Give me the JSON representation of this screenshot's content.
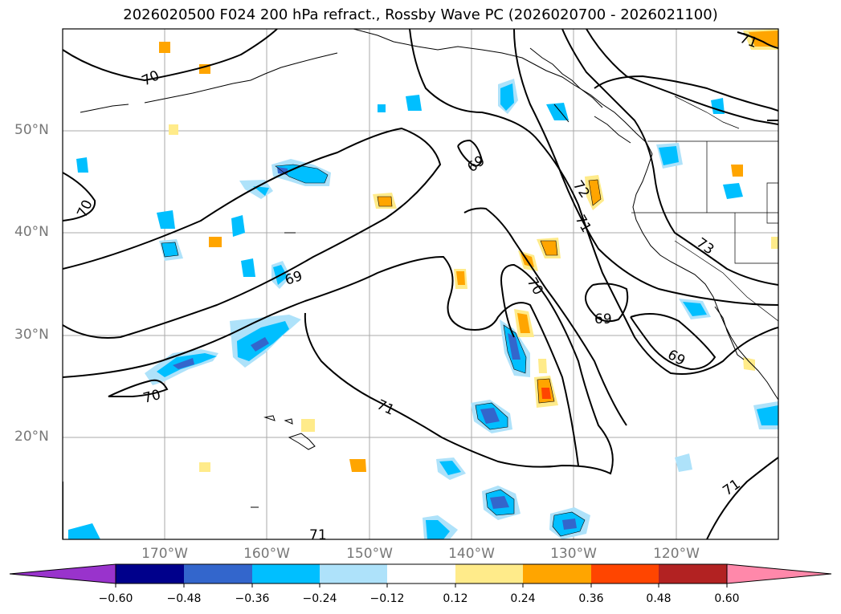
{
  "title": "2026020500 F024 200 hPa refract., Rossby Wave PC (2026020700 - 2026021100)",
  "lat_labels": [
    "50°N",
    "40°N",
    "30°N",
    "20°N"
  ],
  "lon_labels": [
    "170°W",
    "160°W",
    "150°W",
    "140°W",
    "130°W",
    "120°W"
  ],
  "contour_labels": [
    "70",
    "70",
    "69",
    "69",
    "72",
    "71",
    "73",
    "70",
    "69",
    "69",
    "70",
    "71",
    "71",
    "71",
    "71"
  ],
  "colorbar": {
    "ticks": [
      "−0.60",
      "−0.48",
      "−0.36",
      "−0.24",
      "−0.12",
      "0.12",
      "0.24",
      "0.36",
      "0.48",
      "0.60"
    ],
    "colors": [
      "#9933cc",
      "#00008b",
      "#3366cc",
      "#00bfff",
      "#aee2fa",
      "#ffffff",
      "#ffeb8a",
      "#ffa500",
      "#ff4500",
      "#b22222",
      "#ff88aa"
    ]
  },
  "colors": {
    "land_line": "#000000",
    "grid": "#aaaaaa",
    "contour": "#000000"
  }
}
